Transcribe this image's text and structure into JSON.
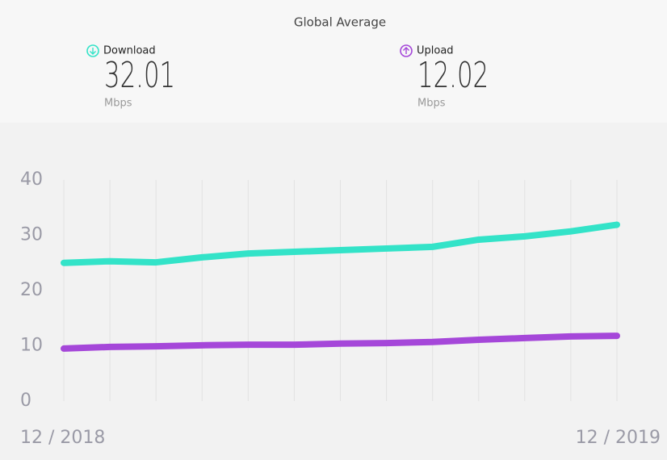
{
  "header": {
    "title": "Global Average",
    "download": {
      "label": "Download",
      "value": "32.01",
      "unit": "Mbps"
    },
    "upload": {
      "label": "Upload",
      "value": "12.02",
      "unit": "Mbps"
    }
  },
  "chart_data": {
    "type": "line",
    "categories": [
      "12 / 2018",
      null,
      null,
      null,
      null,
      null,
      null,
      null,
      null,
      null,
      null,
      null,
      "12 / 2019"
    ],
    "series": [
      {
        "name": "Download",
        "color": "#33e3c8",
        "values": [
          25.0,
          25.3,
          25.1,
          26.0,
          26.7,
          27.0,
          27.3,
          27.6,
          27.9,
          29.2,
          29.8,
          30.7,
          31.9
        ]
      },
      {
        "name": "Upload",
        "color": "#a547d9",
        "values": [
          9.5,
          9.8,
          9.9,
          10.1,
          10.2,
          10.2,
          10.4,
          10.5,
          10.7,
          11.1,
          11.4,
          11.7,
          11.8
        ]
      }
    ],
    "ylim": [
      0,
      40
    ],
    "yticks": [
      0,
      10,
      20,
      30,
      40
    ],
    "grid": true
  }
}
